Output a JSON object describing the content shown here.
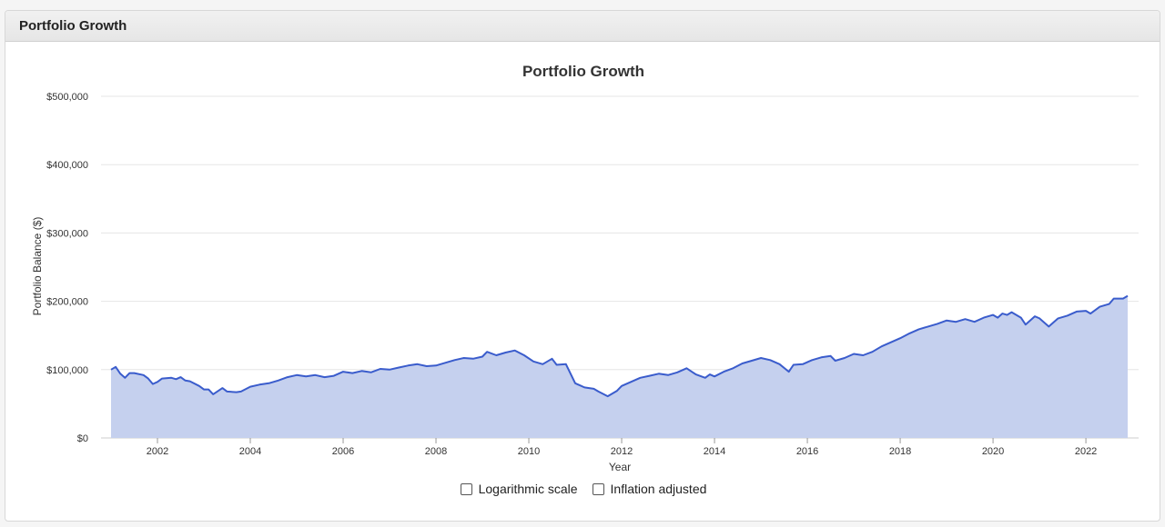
{
  "panel": {
    "title": "Portfolio Growth"
  },
  "controls": {
    "log_label": "Logarithmic scale",
    "inflation_label": "Inflation adjusted"
  },
  "colors": {
    "line": "#3a5ccc",
    "fill": "#c5d0ee",
    "grid": "#e6e6e6"
  },
  "chart_data": {
    "type": "area",
    "title": "Portfolio Growth",
    "xlabel": "Year",
    "ylabel": "Portfolio Balance ($)",
    "xlim": [
      2001.0,
      2022.92
    ],
    "ylim": [
      0,
      500000
    ],
    "xticks": [
      "2002",
      "2004",
      "2006",
      "2008",
      "2010",
      "2012",
      "2014",
      "2016",
      "2018",
      "2020",
      "2022"
    ],
    "yticks": [
      "$0",
      "$100,000",
      "$200,000",
      "$300,000",
      "$400,000",
      "$500,000"
    ],
    "grid": true,
    "series": [
      {
        "points": [
          [
            2001.0,
            100000
          ],
          [
            2001.1,
            104000
          ],
          [
            2001.2,
            94000
          ],
          [
            2001.3,
            88000
          ],
          [
            2001.4,
            95000
          ],
          [
            2001.5,
            95000
          ],
          [
            2001.7,
            92000
          ],
          [
            2001.8,
            87000
          ],
          [
            2001.9,
            79000
          ],
          [
            2002.0,
            82000
          ],
          [
            2002.1,
            87000
          ],
          [
            2002.3,
            88000
          ],
          [
            2002.4,
            86000
          ],
          [
            2002.5,
            89000
          ],
          [
            2002.6,
            84000
          ],
          [
            2002.7,
            83000
          ],
          [
            2002.9,
            76000
          ],
          [
            2003.0,
            71000
          ],
          [
            2003.1,
            71000
          ],
          [
            2003.2,
            64000
          ],
          [
            2003.4,
            73000
          ],
          [
            2003.5,
            68000
          ],
          [
            2003.7,
            67000
          ],
          [
            2003.8,
            68000
          ],
          [
            2004.0,
            75000
          ],
          [
            2004.2,
            78000
          ],
          [
            2004.4,
            80000
          ],
          [
            2004.6,
            84000
          ],
          [
            2004.8,
            89000
          ],
          [
            2005.0,
            92000
          ],
          [
            2005.2,
            90000
          ],
          [
            2005.4,
            92000
          ],
          [
            2005.6,
            89000
          ],
          [
            2005.8,
            91000
          ],
          [
            2006.0,
            97000
          ],
          [
            2006.2,
            95000
          ],
          [
            2006.4,
            98000
          ],
          [
            2006.6,
            96000
          ],
          [
            2006.8,
            101000
          ],
          [
            2007.0,
            100000
          ],
          [
            2007.2,
            103000
          ],
          [
            2007.4,
            106000
          ],
          [
            2007.6,
            108000
          ],
          [
            2007.8,
            105000
          ],
          [
            2008.0,
            106000
          ],
          [
            2008.2,
            110000
          ],
          [
            2008.4,
            114000
          ],
          [
            2008.6,
            117000
          ],
          [
            2008.8,
            116000
          ],
          [
            2009.0,
            119000
          ],
          [
            2009.1,
            126000
          ],
          [
            2009.3,
            121000
          ],
          [
            2009.5,
            125000
          ],
          [
            2009.7,
            128000
          ],
          [
            2009.9,
            121000
          ],
          [
            2010.1,
            112000
          ],
          [
            2010.3,
            108000
          ],
          [
            2010.5,
            116000
          ],
          [
            2010.6,
            107000
          ],
          [
            2010.8,
            108000
          ],
          [
            2011.0,
            80000
          ],
          [
            2011.2,
            74000
          ],
          [
            2011.4,
            72000
          ],
          [
            2011.5,
            68000
          ],
          [
            2011.7,
            61000
          ],
          [
            2011.9,
            69000
          ],
          [
            2012.0,
            76000
          ],
          [
            2012.2,
            82000
          ],
          [
            2012.4,
            88000
          ],
          [
            2012.6,
            91000
          ],
          [
            2012.8,
            94000
          ],
          [
            2013.0,
            92000
          ],
          [
            2013.2,
            96000
          ],
          [
            2013.4,
            102000
          ],
          [
            2013.6,
            93000
          ],
          [
            2013.8,
            88000
          ],
          [
            2013.9,
            93000
          ],
          [
            2014.0,
            90000
          ],
          [
            2014.2,
            97000
          ],
          [
            2014.4,
            102000
          ],
          [
            2014.6,
            109000
          ],
          [
            2014.8,
            113000
          ],
          [
            2015.0,
            117000
          ],
          [
            2015.2,
            114000
          ],
          [
            2015.4,
            108000
          ],
          [
            2015.6,
            97000
          ],
          [
            2015.7,
            107000
          ],
          [
            2015.9,
            108000
          ],
          [
            2016.1,
            114000
          ],
          [
            2016.3,
            118000
          ],
          [
            2016.5,
            120000
          ],
          [
            2016.6,
            113000
          ],
          [
            2016.8,
            117000
          ],
          [
            2017.0,
            123000
          ],
          [
            2017.2,
            121000
          ],
          [
            2017.4,
            126000
          ],
          [
            2017.6,
            134000
          ],
          [
            2017.8,
            140000
          ],
          [
            2018.0,
            146000
          ],
          [
            2018.2,
            153000
          ],
          [
            2018.4,
            159000
          ],
          [
            2018.6,
            163000
          ],
          [
            2018.8,
            167000
          ],
          [
            2019.0,
            172000
          ],
          [
            2019.2,
            170000
          ],
          [
            2019.4,
            174000
          ],
          [
            2019.6,
            170000
          ],
          [
            2019.8,
            176000
          ],
          [
            2020.0,
            180000
          ],
          [
            2020.1,
            176000
          ],
          [
            2020.2,
            182000
          ],
          [
            2020.3,
            180000
          ],
          [
            2020.4,
            184000
          ],
          [
            2020.6,
            176000
          ],
          [
            2020.7,
            166000
          ],
          [
            2020.9,
            178000
          ],
          [
            2021.0,
            175000
          ],
          [
            2021.2,
            163000
          ],
          [
            2021.4,
            175000
          ],
          [
            2021.6,
            179000
          ],
          [
            2021.8,
            185000
          ],
          [
            2022.0,
            186000
          ],
          [
            2022.1,
            182000
          ],
          [
            2022.3,
            192000
          ],
          [
            2022.5,
            196000
          ],
          [
            2022.6,
            204000
          ],
          [
            2022.8,
            204000
          ],
          [
            2022.9,
            208000
          ]
        ]
      }
    ]
  }
}
